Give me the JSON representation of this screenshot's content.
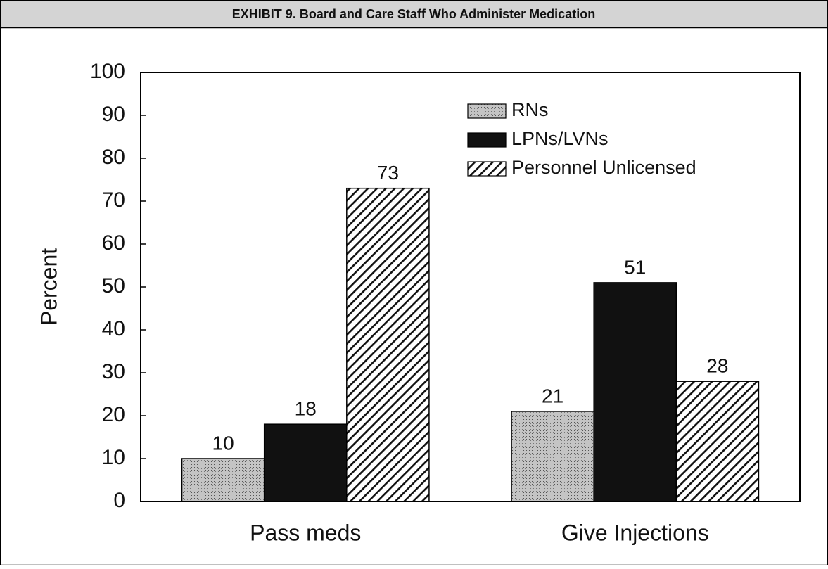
{
  "chart_data": {
    "type": "bar",
    "title": "EXHIBIT 9. Board and Care Staff Who Administer Medication",
    "ylabel": "Percent",
    "categories": [
      "Pass meds",
      "Give Injections"
    ],
    "series": [
      {
        "name": "RNs",
        "color": "#b8b8b8",
        "pattern": "stipple",
        "values": [
          10,
          21
        ]
      },
      {
        "name": "LPNs/LVNs",
        "color": "#111111",
        "pattern": "solid",
        "values": [
          18,
          51
        ]
      },
      {
        "name": "Personnel Unlicensed",
        "color": "#111111",
        "pattern": "hatch",
        "values": [
          73,
          28
        ]
      }
    ],
    "ylim": [
      0,
      100
    ],
    "yticks": [
      0,
      10,
      20,
      30,
      40,
      50,
      60,
      70,
      80,
      90,
      100
    ],
    "legend": "upper right",
    "grid": false
  }
}
